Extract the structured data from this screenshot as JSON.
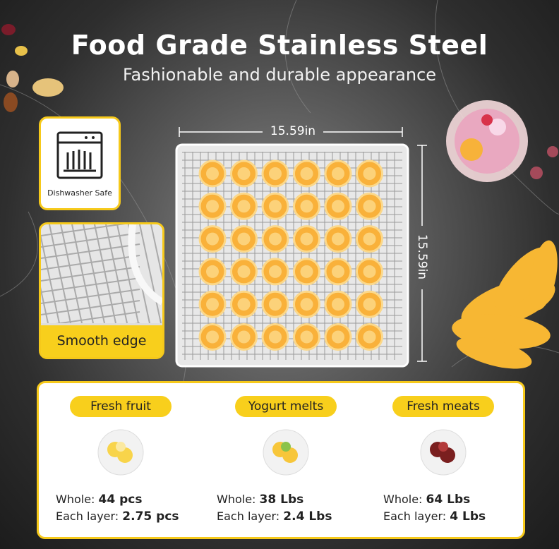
{
  "header": {
    "title": "Food Grade Stainless Steel",
    "subtitle": "Fashionable and durable appearance"
  },
  "dimensions": {
    "width": "15.59in",
    "height": "15.59in"
  },
  "features": [
    {
      "label": "Dishwasher Safe"
    },
    {
      "label": "Smooth edge"
    }
  ],
  "capacities": [
    {
      "name": "Fresh fruit",
      "whole_label": "Whole:",
      "whole": "44 pcs",
      "layer_label": "Each layer:",
      "layer": "2.75 pcs"
    },
    {
      "name": "Yogurt melts",
      "whole_label": "Whole:",
      "whole": "38 Lbs",
      "layer_label": "Each layer:",
      "layer": "2.4 Lbs"
    },
    {
      "name": "Fresh meats",
      "whole_label": "Whole:",
      "whole": "64 Lbs",
      "layer_label": "Each layer:",
      "layer": "4 Lbs"
    }
  ]
}
